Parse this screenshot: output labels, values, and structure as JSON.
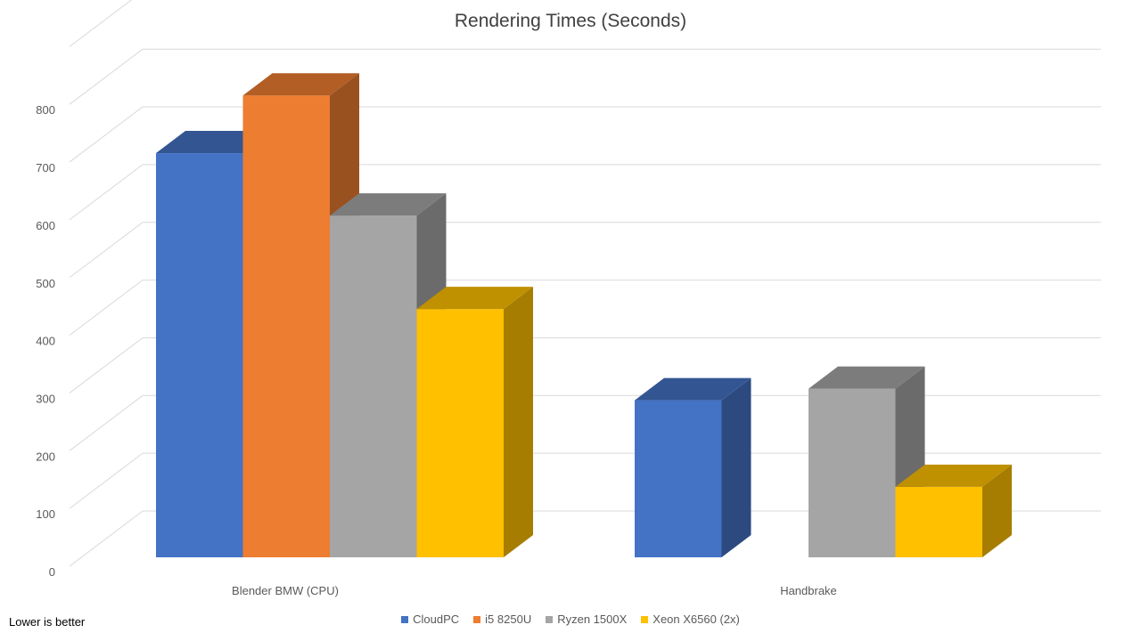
{
  "footnote": "Lower is better",
  "chart_data": {
    "type": "bar",
    "title": "Rendering Times (Seconds)",
    "xlabel": "",
    "ylabel": "",
    "categories": [
      "Blender BMW (CPU)",
      "Handbrake"
    ],
    "ylim": [
      0,
      800
    ],
    "y_ticks": [
      0,
      100,
      200,
      300,
      400,
      500,
      600,
      700,
      800
    ],
    "grid": true,
    "legend_position": "bottom",
    "style": "3d-clustered-column",
    "series": [
      {
        "name": "CloudPC",
        "values": [
          700,
          272
        ],
        "color": "#4472C4"
      },
      {
        "name": "i5 8250U",
        "values": [
          800,
          null
        ],
        "color": "#ED7D31"
      },
      {
        "name": "Ryzen 1500X",
        "values": [
          592,
          292
        ],
        "color": "#A5A5A5"
      },
      {
        "name": "Xeon X6560 (2x)",
        "values": [
          430,
          122
        ],
        "color": "#FFC000"
      }
    ]
  }
}
